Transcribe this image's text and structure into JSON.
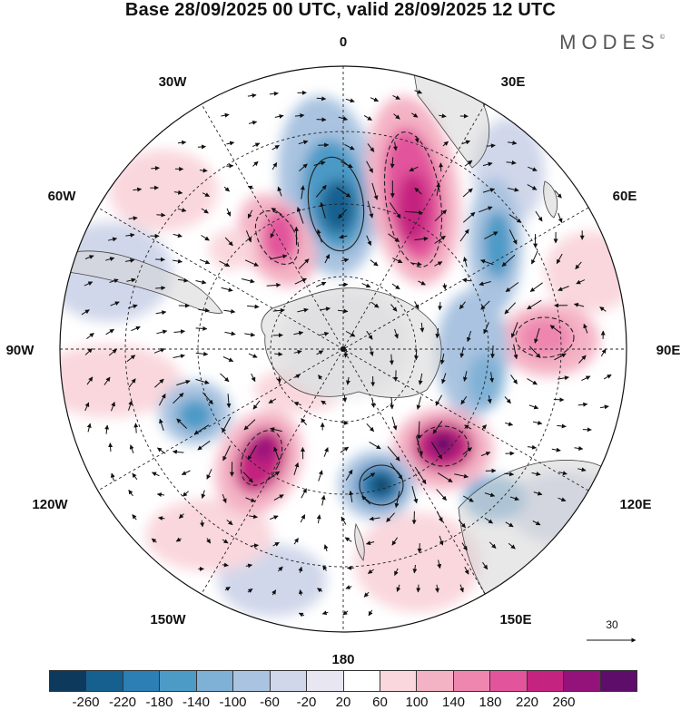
{
  "header": {
    "title": "Base 28/09/2025 00 UTC, valid 28/09/2025 12 UTC",
    "brand": "MODES",
    "brand_mark": "©"
  },
  "map": {
    "longitude_labels": {
      "lon_0": "0",
      "lon_30e": "30E",
      "lon_60e": "60E",
      "lon_90e": "90E",
      "lon_120e": "120E",
      "lon_150e": "150E",
      "lon_180": "180",
      "lon_150w": "150W",
      "lon_120w": "120W",
      "lon_90w": "90W",
      "lon_60w": "60W",
      "lon_30w": "30W"
    },
    "reference_vector_label": "30"
  },
  "colorbar": {
    "labels": [
      "-260",
      "-220",
      "-180",
      "-140",
      "-100",
      "-60",
      "-20",
      "20",
      "60",
      "100",
      "140",
      "180",
      "220",
      "260"
    ],
    "colors": [
      "#0d3a5c",
      "#16608f",
      "#2b7fb4",
      "#4c9ac6",
      "#7fb0d5",
      "#a9c3e0",
      "#d0d7ea",
      "#e8e6f1",
      "#ffffff",
      "#f9d7dd",
      "#f4b3c5",
      "#ee86b0",
      "#e2559c",
      "#c4247f",
      "#94137a",
      "#5e0d6a"
    ]
  }
}
